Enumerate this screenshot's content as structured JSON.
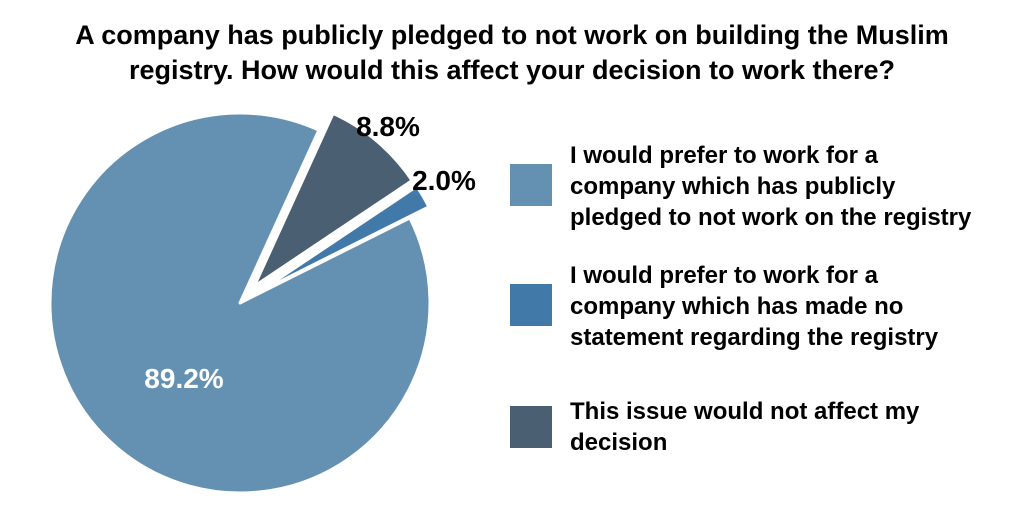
{
  "chart_data": {
    "type": "pie",
    "title": [
      "A company has publicly pledged to not work on building the Muslim",
      "registry. How would this affect your decision to work there?"
    ],
    "slices": [
      {
        "label": "I would prefer to work for a company which has publicly pledged to not work on the registry",
        "legend_lines": [
          "I would prefer to work for a",
          "company which has publicly",
          "pledged to not work on the registry"
        ],
        "value": 89.2,
        "value_label": "89.2%",
        "color": "#6491b1",
        "exploded": false
      },
      {
        "label": "I would prefer to work for a company which has made no statement regarding the registry",
        "legend_lines": [
          "I would prefer to work for a",
          "company which has made no",
          "statement regarding the registry"
        ],
        "value": 2.0,
        "value_label": "2.0%",
        "color": "#4179a8",
        "exploded": true
      },
      {
        "label": "This issue would not affect my decision",
        "legend_lines": [
          "This issue would not affect my",
          "decision"
        ],
        "value": 8.8,
        "value_label": "8.8%",
        "color": "#4a5f72",
        "exploded": true
      }
    ],
    "legend_placement": "right"
  }
}
